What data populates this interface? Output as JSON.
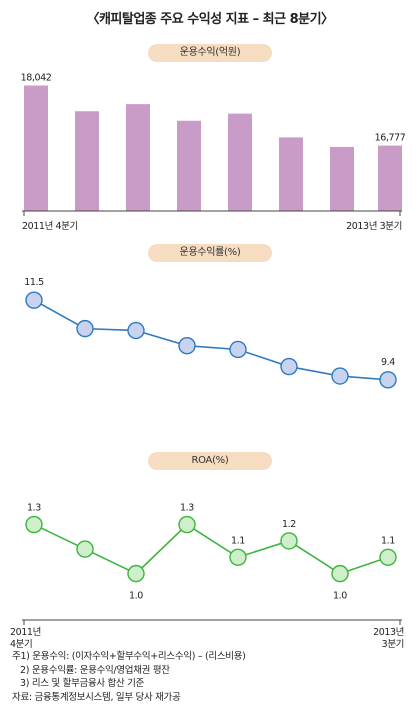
{
  "title": "〈캐피탈업종 주요 수익성 지표 – 최근 8분기〉",
  "chart_data": [
    {
      "type": "bar",
      "title": "운용수익(억원)",
      "categories": [
        "2011년 4분기",
        "",
        "",
        "",
        "",
        "",
        "",
        "2013년 3분기"
      ],
      "x_start_label": "2011년 4분기",
      "x_end_label": "2013년 3분기",
      "values": [
        18042,
        17500,
        17650,
        17300,
        17450,
        16950,
        16750,
        16777
      ],
      "value_labels": [
        "18,042",
        "",
        "",
        "",
        "",
        "",
        "",
        "16,777"
      ],
      "ylim": [
        15400,
        18200
      ],
      "color": "#c99bc7"
    },
    {
      "type": "line",
      "title": "운용수익률(%)",
      "categories": [
        "2011년 4분기",
        "",
        "",
        "",
        "",
        "",
        "",
        "2013년 3분기"
      ],
      "values": [
        11.5,
        10.75,
        10.7,
        10.3,
        10.2,
        9.75,
        9.5,
        9.4
      ],
      "value_labels": [
        "11.5",
        "",
        "",
        "",
        "",
        "",
        "",
        "9.4"
      ],
      "ylim": [
        9.0,
        11.9
      ],
      "line_color": "#2e7bbf",
      "marker_color": "#c9d3f0"
    },
    {
      "type": "line",
      "title": "ROA(%)",
      "categories": [
        "2011년 4분기",
        "",
        "",
        "",
        "",
        "",
        "",
        "2013년 3분기"
      ],
      "x_start_label": [
        "2011년",
        "4분기"
      ],
      "x_end_label": [
        "2013년",
        "3분기"
      ],
      "values": [
        1.3,
        1.15,
        1.0,
        1.3,
        1.1,
        1.2,
        1.0,
        1.1
      ],
      "value_labels": [
        "1.3",
        "",
        "1.0",
        "1.3",
        "1.1",
        "1.2",
        "1.0",
        "1.1"
      ],
      "ylim": [
        0.9,
        1.45
      ],
      "line_color": "#3db53d",
      "marker_color": "#cfeecb"
    }
  ],
  "notes": [
    "주1) 운용수익: (이자수익+할부수익+리스수익) – (리스비용)",
    "2) 운용수익률: 운용수익/영업채권 평잔",
    "3) 리스 및 할부금융사 합산 기준",
    "자료: 금융통계정보시스템, 일부 당사 재가공"
  ]
}
